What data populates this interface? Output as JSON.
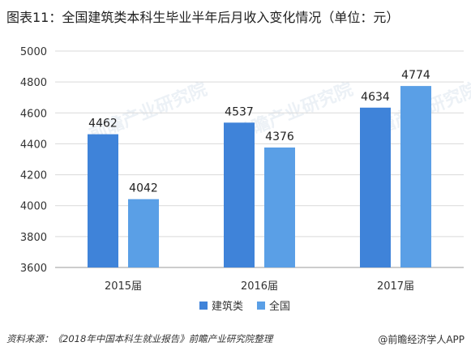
{
  "title": "图表11：全国建筑类本科生毕业半年后月收入变化情况（单位：元）",
  "source_text": "资料来源：《2018年中国本科生就业报告》前瞻产业研究院整理",
  "brand_text": "@前瞻经济学人APP",
  "watermark_text": "前瞻产业研究院",
  "colors": {
    "series1": "#3f83d9",
    "series2": "#5a9fe6",
    "axis": "#999999",
    "grid": "#d9d9d9"
  },
  "chart_data": {
    "type": "bar",
    "categories": [
      "2015届",
      "2016届",
      "2017届"
    ],
    "series": [
      {
        "name": "建筑类",
        "values": [
          4462,
          4537,
          4634
        ]
      },
      {
        "name": "全国",
        "values": [
          4042,
          4376,
          4774
        ]
      }
    ],
    "ylim": [
      3600,
      5000
    ],
    "yticks": [
      3600,
      3800,
      4000,
      4200,
      4400,
      4600,
      4800,
      5000
    ],
    "grid": true,
    "legend": "bottom",
    "data_labels": true
  }
}
